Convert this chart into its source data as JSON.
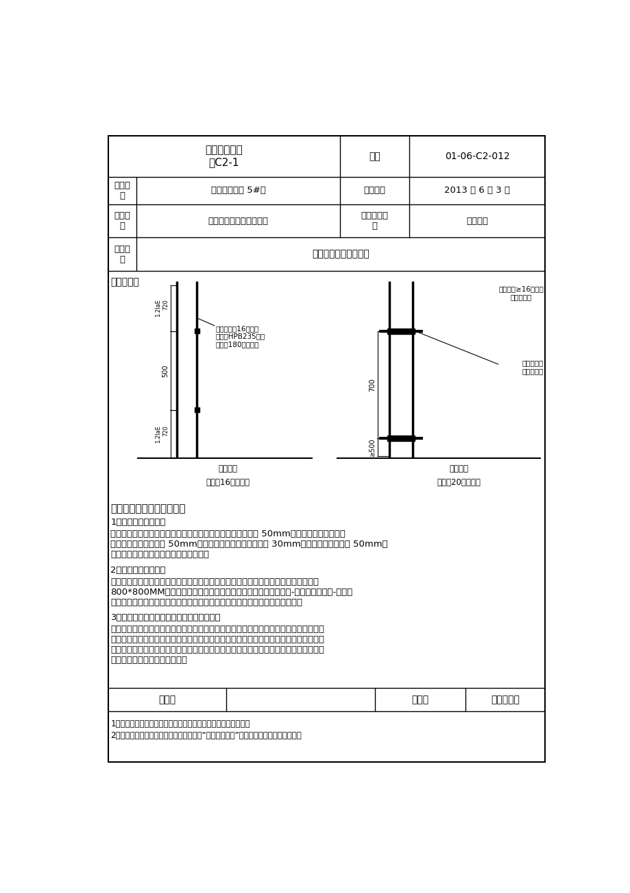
{
  "title": "技术交底记录\n表C2-1",
  "biaohao": "编号",
  "biaohao_val": "01-06-C2-012",
  "gongcheng_label": "工程名\n称",
  "gongcheng_val": "谷峰印象三期 5#楼",
  "jiaodi_label": "交底日期",
  "jiaodi_val": "2013 年 6 月 3 日",
  "shigong_label": "施工单\n位",
  "shigong_val": "容城县建筑工程有限公司",
  "fenxiang_label": "分项工程名\n称",
  "fenxiang_val": "钢筋工程",
  "jiaodi_ti_label": "交底提\n要",
  "jiaodi_ti_val": "筏板基础钢筋绑扎施工",
  "content_title": "交底内容：",
  "diagram_note1": "钢筋直径＜16时搭接\n构造，HPB235钢筋\n端头加180度弯头。",
  "diagram_note2": "钢筋直径≥16时采用\n机械连接。",
  "diagram_note3": "相邻钢筋交\n错机械连接",
  "diagram_label1": "基础顶面",
  "diagram_label2": "基础顶面",
  "diagram_caption1": "以直径16钢筋为例",
  "diagram_caption2": "以直径20钢筋为例",
  "section5_title": "五、施工中注意的质量问题",
  "item1_title": "1、起步筋位置不准确",
  "item1_body": "预防纠正措施：墙体竖向起步筋的位置严格控制距离暗柱主筋 50mm；墙体水平起步筋的位\n置严格控制距结构板面 50mm；暗柱箍筋起步筋距结构板面 30mm；梁箍筋距暗柱主筋 50mm。\n在绑起步筋时，严格用尺量再固定绑扎。",
  "item2_title": "2、保护层大小不一致",
  "item2_body": "预防纠正措施：底板保护层不一致主要原因为垫块不均匀。施工时要注意下铁垫块间距\n800*800MM，间距一定要均匀。马凳高度严格控制（底板板厚度-上下铁钢筋直径-上下铁\n保护层厚度），在浇筑混凝土过程中，必须有专人看筋，钢筋有位移及时校正。",
  "item3_title": "3、暗柱钢筋接头高度不一致，丝扣无保护帽",
  "item3_body": "预防纠正措施：后台下料时，严格控制下料长度，保证锚固长度的同时，要保证下料长度\n一致；丝扣必须用保护帽进行保护，防止混凝土的污染预防纠正措施：接箍筋间距要求画\n线，严格按线进行绑扎固定，同时保证与柱主筋垂直。后台下料时，先放出箍筋样板，经\n审合格后，严格按照样板下料。",
  "footer_label1": "审核人",
  "footer_label2": "交底人",
  "footer_label3": "接受交底人",
  "footnote1": "1、本表由施工单位填写，交底单位与接受交底单位各保存一份。",
  "footnote2": "2、当做分项工程施工技术交底时，应填写“分项工程名称”栏，其他技术交底可不填写。",
  "bg_color": "#ffffff",
  "border_color": "#000000",
  "text_color": "#000000"
}
